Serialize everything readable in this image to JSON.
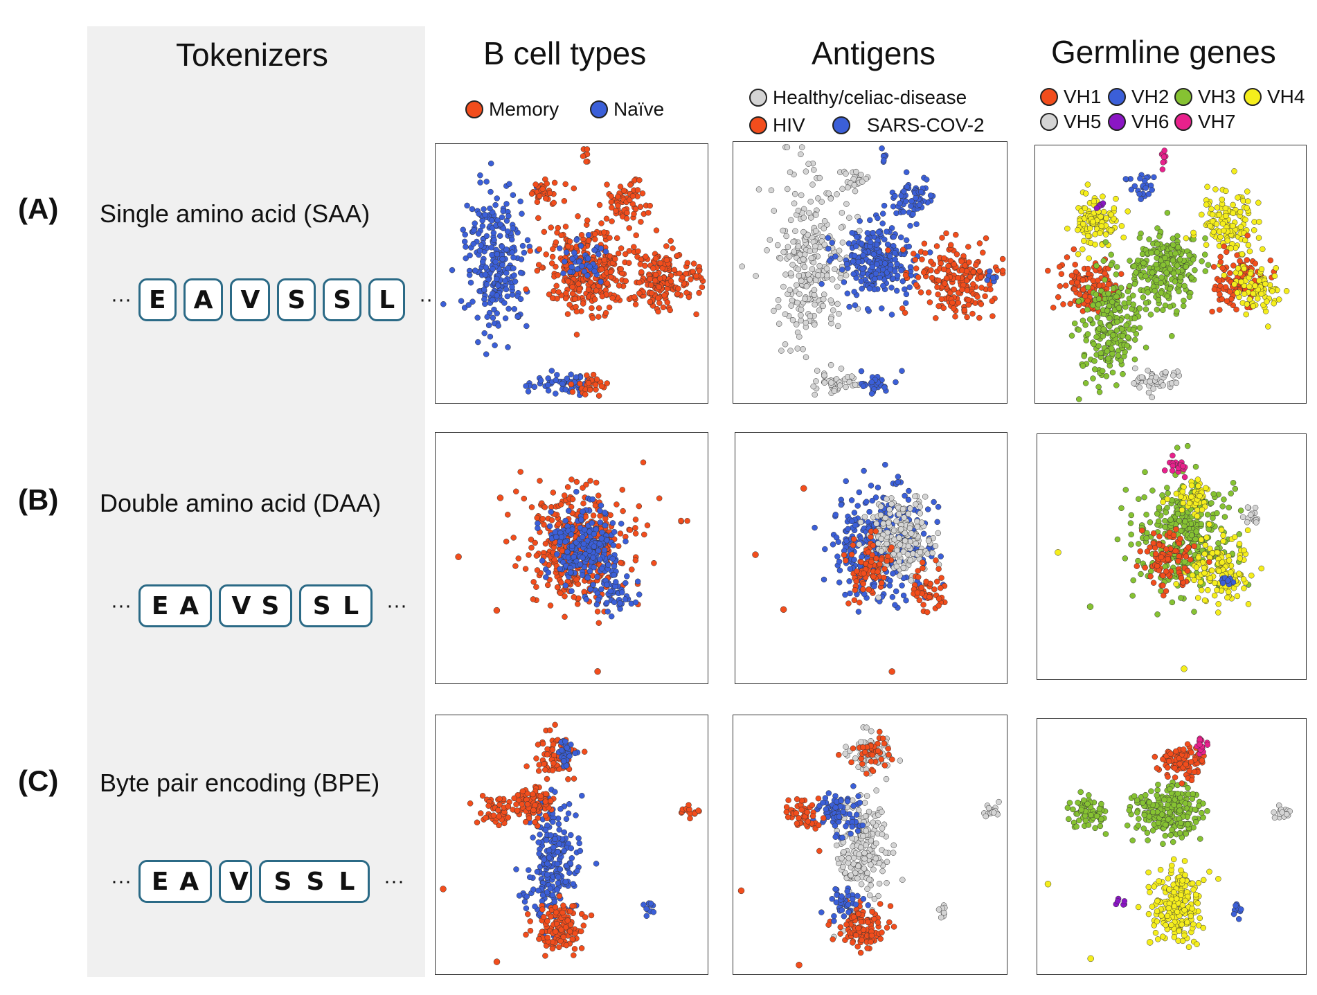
{
  "column_titles": {
    "tokenizers": "Tokenizers",
    "b_cell_types": "B cell types",
    "antigens": "Antigens",
    "germline_genes": "Germline genes"
  },
  "rows": [
    {
      "letter": "(A)",
      "name": "Single amino acid (SAA)",
      "tokens": [
        [
          "E"
        ],
        [
          "A"
        ],
        [
          "V"
        ],
        [
          "S"
        ],
        [
          "S"
        ],
        [
          "L"
        ]
      ]
    },
    {
      "letter": "(B)",
      "name": "Double amino acid (DAA)",
      "tokens": [
        [
          "E",
          "A"
        ],
        [
          "V",
          "S"
        ],
        [
          "S",
          "L"
        ]
      ]
    },
    {
      "letter": "(C)",
      "name": "Byte pair encoding (BPE)",
      "tokens": [
        [
          "E",
          "A"
        ],
        [
          "V"
        ],
        [
          "S",
          "S",
          "L"
        ]
      ]
    }
  ],
  "ellipsis": "···",
  "legends": {
    "b_cell_types": [
      {
        "label": "Memory",
        "color": "#f24d1c"
      },
      {
        "label": "Naïve",
        "color": "#3b5fd8"
      }
    ],
    "antigens": [
      {
        "label": "Healthy/celiac-disease",
        "color": "#d4d4d4"
      },
      {
        "label": "HIV",
        "color": "#f24d1c"
      },
      {
        "label": "SARS-COV-2",
        "color": "#3b5fd8"
      }
    ],
    "germline_genes": [
      {
        "label": "VH1",
        "color": "#f24d1c"
      },
      {
        "label": "VH2",
        "color": "#3b5fd8"
      },
      {
        "label": "VH3",
        "color": "#86c232"
      },
      {
        "label": "VH4",
        "color": "#f5ee1c"
      },
      {
        "label": "VH5",
        "color": "#d4d4d4"
      },
      {
        "label": "VH6",
        "color": "#8a16c4"
      },
      {
        "label": "VH7",
        "color": "#e8218c"
      }
    ]
  }
}
